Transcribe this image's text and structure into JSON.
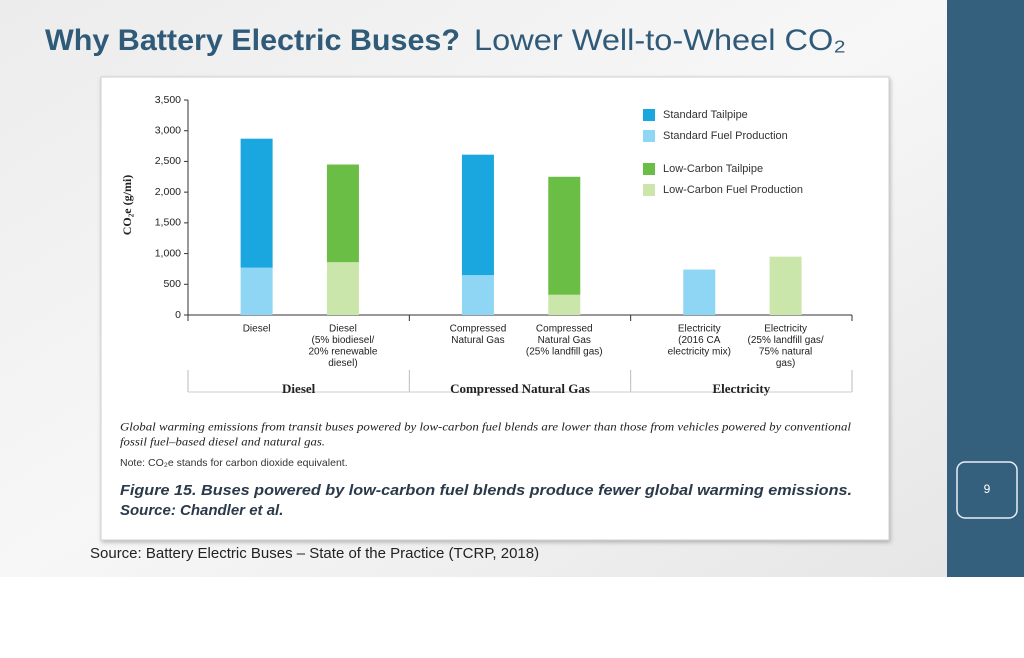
{
  "slide": {
    "title_bold": "Why Battery Electric Buses?",
    "title_rest": "Lower Well-to-Wheel CO₂",
    "source": "Source: Battery Electric Buses – State of the Practice (TCRP, 2018)",
    "page_number": "9"
  },
  "chart_data": {
    "type": "bar",
    "stacked": true,
    "y_label": "CO₂e (g/mi)",
    "categories": [
      [
        "Diesel"
      ],
      [
        "Diesel",
        "(5% biodiesel/",
        "20% renewable",
        "diesel)"
      ],
      [
        "Compressed",
        "Natural Gas"
      ],
      [
        "Compressed",
        "Natural Gas",
        "(25% landfill gas)"
      ],
      [
        "Electricity",
        "(2016 CA",
        "electricity mix)"
      ],
      [
        "Electricity",
        "(25% landfill gas/",
        "75% natural",
        "gas)"
      ]
    ],
    "groups": [
      "Diesel",
      "Compressed Natural Gas",
      "Electricity"
    ],
    "series": [
      {
        "name": "Standard Tailpipe",
        "color": "#1aa7df",
        "values": [
          2100,
          null,
          1960,
          null,
          null,
          null
        ]
      },
      {
        "name": "Standard Fuel Production",
        "color": "#8fd5f4",
        "values": [
          770,
          null,
          650,
          null,
          740,
          null
        ]
      },
      {
        "name": "Low-Carbon Tailpipe",
        "color": "#6abd45",
        "values": [
          null,
          1590,
          null,
          1920,
          null,
          null
        ]
      },
      {
        "name": "Low-Carbon Fuel Production",
        "color": "#cbe6ab",
        "values": [
          null,
          860,
          null,
          330,
          null,
          950
        ]
      }
    ],
    "ylim": [
      0,
      3500
    ],
    "yticks": [
      0,
      500,
      {
        "value": 1000,
        "label": "1,000"
      },
      {
        "value": 1500,
        "label": "1,500"
      },
      {
        "value": 2000,
        "label": "2,000"
      },
      {
        "value": 2500,
        "label": "2,500"
      },
      {
        "value": 3000,
        "label": "3,000"
      },
      {
        "value": 3500,
        "label": "3,500"
      }
    ],
    "grid": false,
    "legend": "top-right",
    "caption": [
      "Global warming emissions from transit buses powered by low-carbon fuel blends are lower than those from vehicles powered by conventional",
      "fossil fuel–based diesel and natural gas."
    ],
    "note": "Note: CO₂e stands for carbon dioxide equivalent.",
    "figure_title": "Figure 15.   Buses powered by low-carbon fuel blends produce fewer global warming emissions.",
    "figure_source": "Source: Chandler et al."
  }
}
